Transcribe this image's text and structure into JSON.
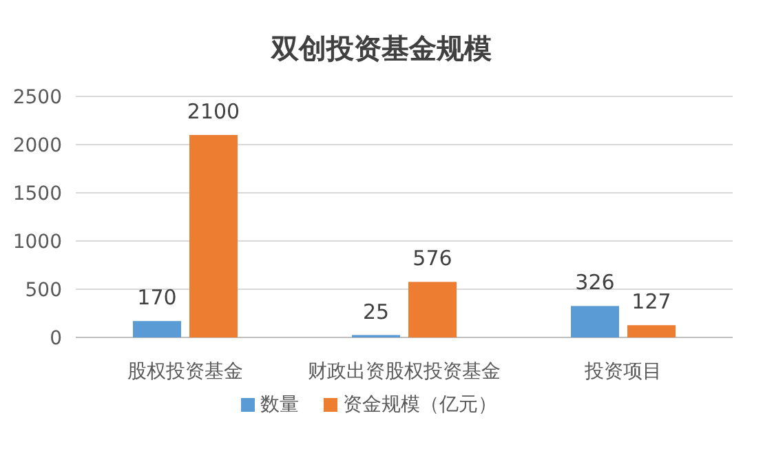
{
  "chart_data": {
    "type": "bar",
    "title": "双创投资基金规模",
    "categories": [
      "股权投资基金",
      "财政出资股权投资基金",
      "投资项目"
    ],
    "series": [
      {
        "name": "数量",
        "color": "#5b9bd5",
        "values": [
          170,
          25,
          326
        ]
      },
      {
        "name": "资金规模（亿元）",
        "color": "#ed7d31",
        "values": [
          2100,
          576,
          127
        ]
      }
    ],
    "ylim": [
      0,
      2500
    ],
    "yticks": [
      0,
      500,
      1000,
      1500,
      2000,
      2500
    ],
    "grid": "y",
    "legend": "bottom",
    "data_labels": true
  }
}
